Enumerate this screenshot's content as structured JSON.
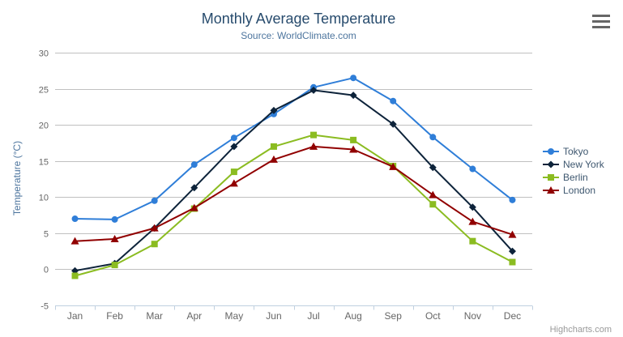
{
  "chart_data": {
    "type": "line",
    "title": "Monthly Average Temperature",
    "subtitle": "Source: WorldClimate.com",
    "xlabel": "",
    "ylabel": "Temperature (°C)",
    "ylim": [
      -5,
      30
    ],
    "yticks": [
      30,
      25,
      20,
      15,
      10,
      5,
      0,
      -5
    ],
    "grid": true,
    "legend_position": "right",
    "categories": [
      "Jan",
      "Feb",
      "Mar",
      "Apr",
      "May",
      "Jun",
      "Jul",
      "Aug",
      "Sep",
      "Oct",
      "Nov",
      "Dec"
    ],
    "series": [
      {
        "name": "Tokyo",
        "color": "#2f7ed8",
        "marker": "circle",
        "values": [
          7.0,
          6.9,
          9.5,
          14.5,
          18.2,
          21.5,
          25.2,
          26.5,
          23.3,
          18.3,
          13.9,
          9.6
        ]
      },
      {
        "name": "New York",
        "color": "#0d233a",
        "marker": "diamond",
        "values": [
          -0.2,
          0.8,
          5.7,
          11.3,
          17.0,
          22.0,
          24.8,
          24.1,
          20.1,
          14.1,
          8.6,
          2.5
        ]
      },
      {
        "name": "Berlin",
        "color": "#8bbc21",
        "marker": "square",
        "values": [
          -0.9,
          0.6,
          3.5,
          8.4,
          13.5,
          17.0,
          18.6,
          17.9,
          14.3,
          9.0,
          3.9,
          1.0
        ]
      },
      {
        "name": "London",
        "color": "#910000",
        "marker": "triangle",
        "values": [
          3.9,
          4.2,
          5.7,
          8.5,
          11.9,
          15.2,
          17.0,
          16.6,
          14.2,
          10.3,
          6.6,
          4.8
        ]
      }
    ]
  },
  "colors": {
    "title": "#274b6d",
    "subtitle": "#4d759e",
    "axis_title": "#4d759e",
    "axis_label": "#666666",
    "gridline": "#c0c0c0",
    "axis_line": "#c0d0e0",
    "legend_text": "#3e576f",
    "credits": "#999999",
    "menu_icon": "#666666"
  },
  "menu": {
    "icon": "hamburger-icon"
  },
  "credits": {
    "label": "Highcharts.com"
  }
}
